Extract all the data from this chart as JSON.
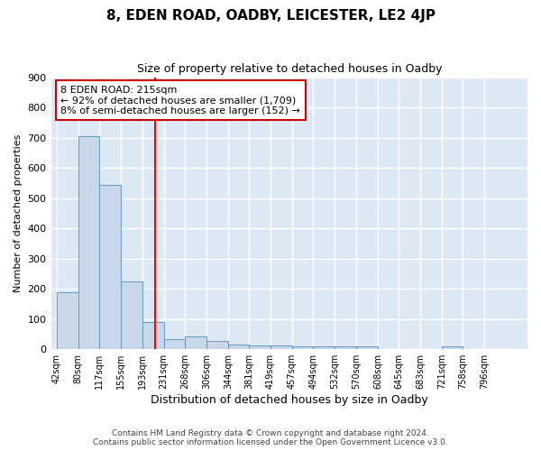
{
  "title": "8, EDEN ROAD, OADBY, LEICESTER, LE2 4JP",
  "subtitle": "Size of property relative to detached houses in Oadby",
  "xlabel": "Distribution of detached houses by size in Oadby",
  "ylabel": "Number of detached properties",
  "footer_line1": "Contains HM Land Registry data © Crown copyright and database right 2024.",
  "footer_line2": "Contains public sector information licensed under the Open Government Licence v3.0.",
  "annotation_line1": "8 EDEN ROAD: 215sqm",
  "annotation_line2": "← 92% of detached houses are smaller (1,709)",
  "annotation_line3": "8% of semi-detached houses are larger (152) →",
  "bar_color": "#c8d8ea",
  "bar_edge_color": "#6699bb",
  "vline_color": "red",
  "vline_x": 215,
  "categories": [
    "42sqm",
    "80sqm",
    "117sqm",
    "155sqm",
    "193sqm",
    "231sqm",
    "268sqm",
    "306sqm",
    "344sqm",
    "381sqm",
    "419sqm",
    "457sqm",
    "494sqm",
    "532sqm",
    "570sqm",
    "608sqm",
    "645sqm",
    "683sqm",
    "721sqm",
    "758sqm",
    "796sqm"
  ],
  "bin_edges": [
    42,
    80,
    117,
    155,
    193,
    231,
    268,
    306,
    344,
    381,
    419,
    457,
    494,
    532,
    570,
    608,
    645,
    683,
    721,
    758,
    796,
    834
  ],
  "values": [
    190,
    705,
    543,
    225,
    90,
    32,
    42,
    28,
    15,
    13,
    12,
    11,
    9,
    9,
    9,
    0,
    0,
    0,
    10,
    0,
    0
  ],
  "ylim": [
    0,
    900
  ],
  "yticks": [
    0,
    100,
    200,
    300,
    400,
    500,
    600,
    700,
    800,
    900
  ],
  "fig_bg_color": "#ffffff",
  "plot_bg_color": "#dde8f5",
  "grid_color": "#ffffff",
  "annotation_box_color": "#ffffff",
  "annotation_box_edge": "#cc0000"
}
